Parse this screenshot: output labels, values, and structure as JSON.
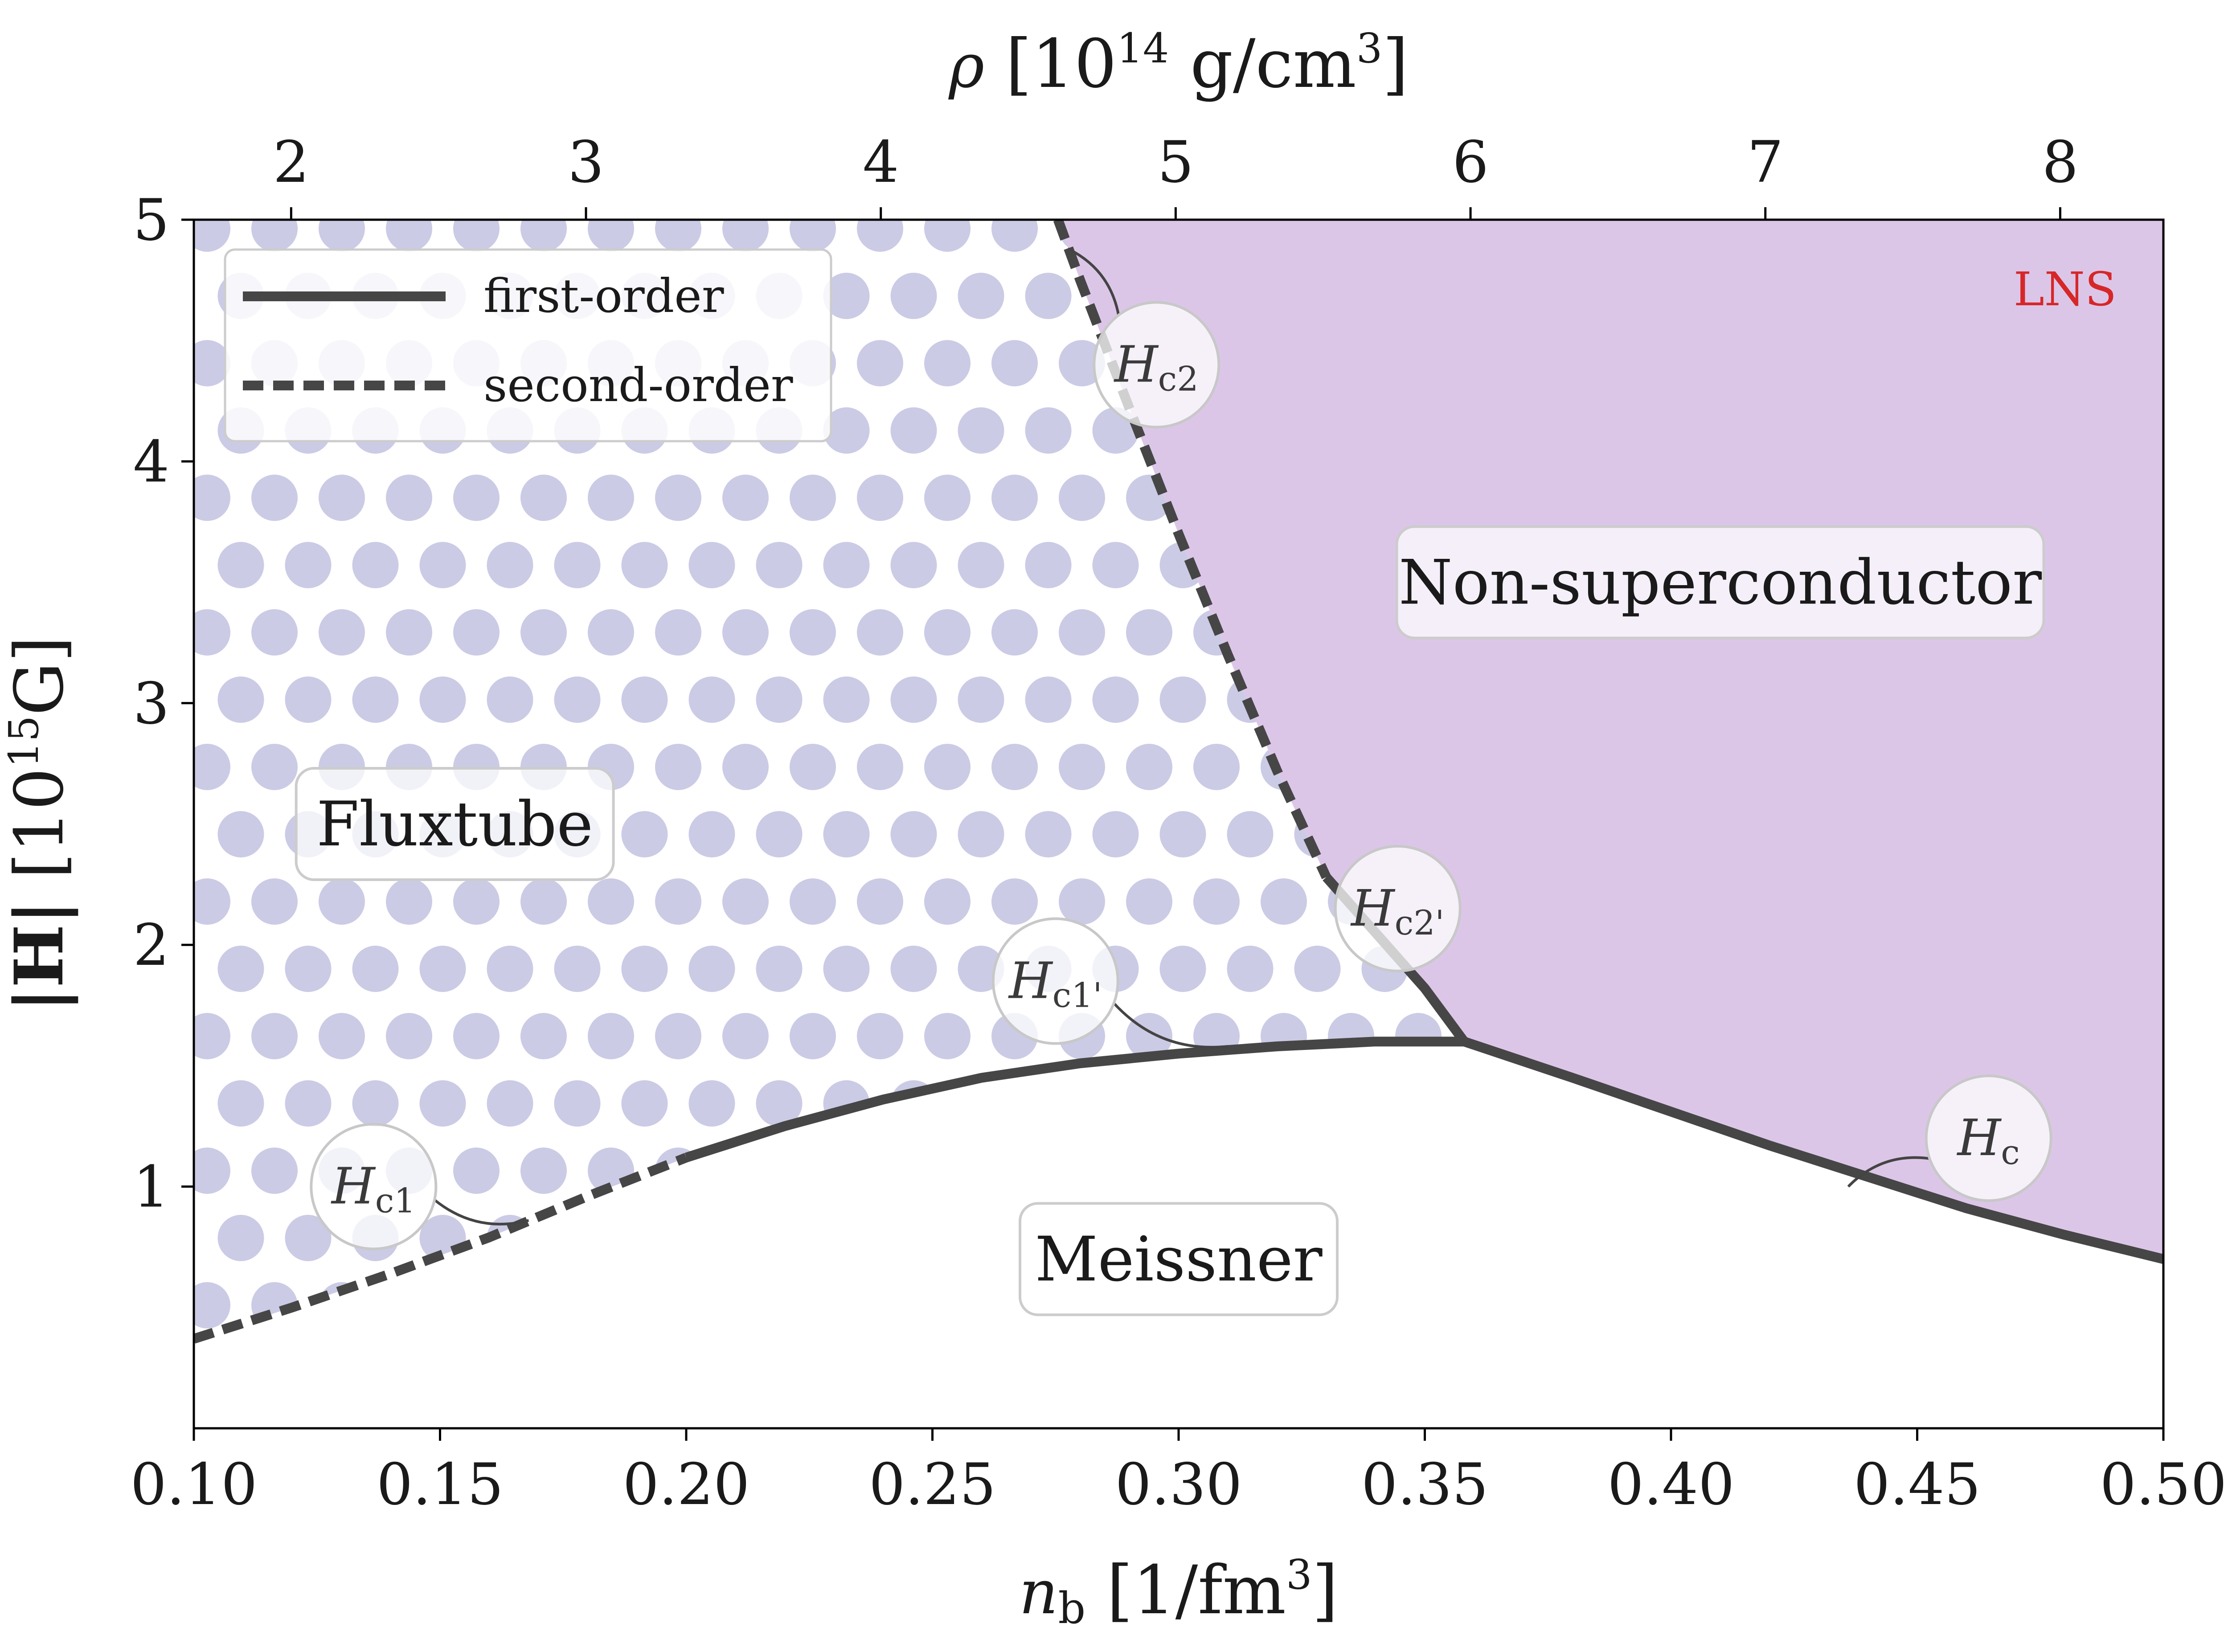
{
  "chart_data": {
    "type": "line",
    "xlabel": "n_b [1/fm^3]",
    "ylabel": "|H| [10^15 G]",
    "x2label": "ρ [10^14 g/cm^3]",
    "xlim": [
      0.1,
      0.5
    ],
    "ylim": [
      0,
      5
    ],
    "x2lim": [
      1.67,
      8.35
    ],
    "xticks": [
      "0.10",
      "0.15",
      "0.20",
      "0.25",
      "0.30",
      "0.35",
      "0.40",
      "0.45",
      "0.50"
    ],
    "yticks": [
      "1",
      "2",
      "3",
      "4",
      "5"
    ],
    "x2ticks": [
      "2",
      "3",
      "4",
      "5",
      "6",
      "7",
      "8"
    ],
    "colors": {
      "lns_region": "#dcc6e8",
      "fluxtube_dots": "#cbcbe6",
      "line": "#464646",
      "lns_label": "#d62728"
    },
    "legend": {
      "placement": "upper-left",
      "entries": [
        {
          "label": "first-order",
          "style": "solid"
        },
        {
          "label": "second-order",
          "style": "dashed"
        }
      ]
    },
    "regions": [
      {
        "label": "Fluxtube",
        "x": 0.153,
        "y": 2.5
      },
      {
        "label": "Non-superconductor",
        "x": 0.41,
        "y": 3.5
      },
      {
        "label": "Meissner",
        "x": 0.3,
        "y": 0.7
      }
    ],
    "corner_label": "LNS",
    "series": [
      {
        "name": "Hc1",
        "style": "dashed",
        "x": [
          0.1,
          0.12,
          0.14,
          0.16,
          0.18,
          0.2
        ],
        "y": [
          0.37,
          0.5,
          0.64,
          0.79,
          0.96,
          1.12
        ]
      },
      {
        "name": "Hc1'",
        "style": "solid",
        "x": [
          0.2,
          0.22,
          0.24,
          0.26,
          0.28,
          0.3,
          0.32,
          0.34,
          0.358
        ],
        "y": [
          1.12,
          1.25,
          1.36,
          1.45,
          1.51,
          1.55,
          1.58,
          1.6,
          1.6
        ]
      },
      {
        "name": "Hc2",
        "style": "dashed",
        "x": [
          0.2755,
          0.28,
          0.29,
          0.3,
          0.31,
          0.32,
          0.33
        ],
        "y": [
          5.0,
          4.75,
          4.22,
          3.7,
          3.2,
          2.72,
          2.28
        ]
      },
      {
        "name": "Hc2'",
        "style": "solid",
        "x": [
          0.33,
          0.34,
          0.35,
          0.358
        ],
        "y": [
          2.28,
          2.05,
          1.82,
          1.6
        ]
      },
      {
        "name": "Hc",
        "style": "solid",
        "x": [
          0.358,
          0.38,
          0.4,
          0.42,
          0.44,
          0.46,
          0.48,
          0.5
        ],
        "y": [
          1.6,
          1.45,
          1.31,
          1.17,
          1.04,
          0.91,
          0.8,
          0.7
        ]
      }
    ],
    "annotations": [
      {
        "label": "Hc2",
        "x": 0.2955,
        "y": 4.4,
        "target_x": 0.2775,
        "target_y": 4.88
      },
      {
        "label": "Hc2'",
        "x": 0.3445,
        "y": 2.15,
        "target_x": 0.333,
        "target_y": 2.2
      },
      {
        "label": "Hc1'",
        "x": 0.275,
        "y": 1.85,
        "target_x": 0.31,
        "target_y": 1.58
      },
      {
        "label": "Hc1",
        "x": 0.1365,
        "y": 1.0,
        "target_x": 0.168,
        "target_y": 0.86
      },
      {
        "label": "Hc",
        "x": 0.4645,
        "y": 1.2,
        "target_x": 0.436,
        "target_y": 1.0
      }
    ]
  }
}
